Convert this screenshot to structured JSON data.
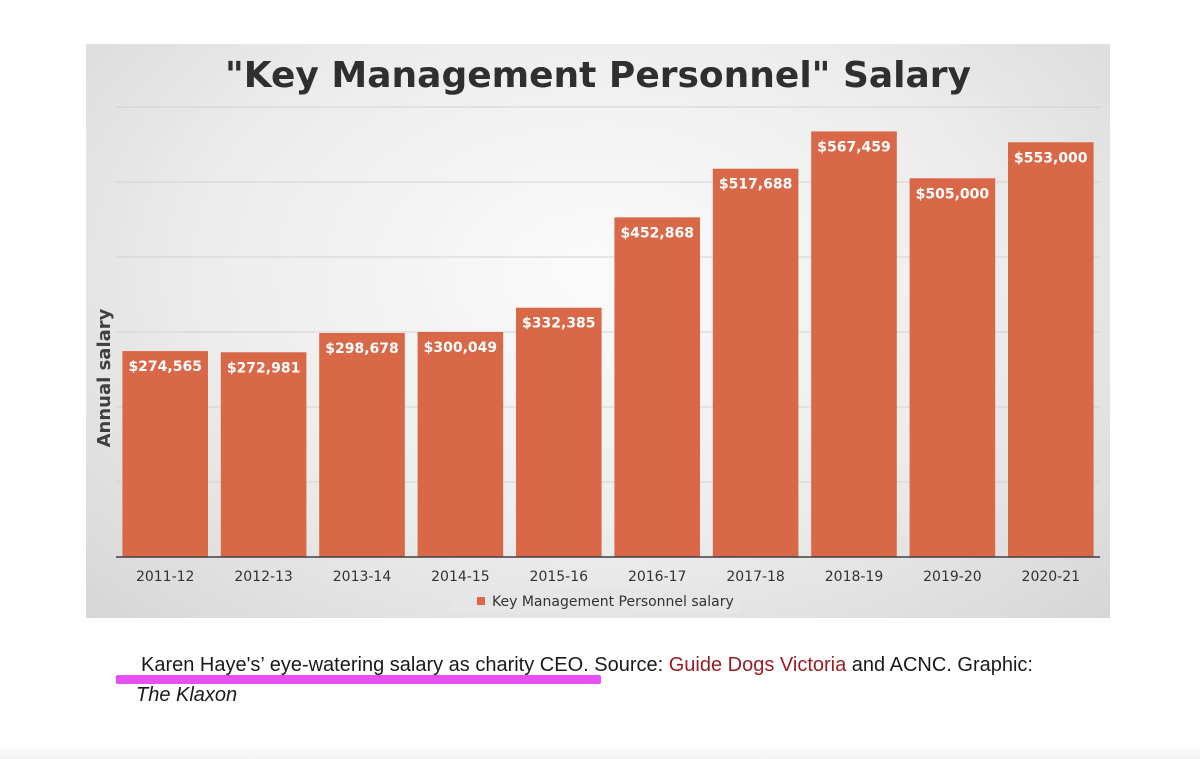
{
  "chart_data": {
    "type": "bar",
    "title": "\"Key Management Personnel\" Salary",
    "ylabel": "Annual salary",
    "xlabel": "",
    "categories": [
      "2011-12",
      "2012-13",
      "2013-14",
      "2014-15",
      "2015-16",
      "2016-17",
      "2017-18",
      "2018-19",
      "2019-20",
      "2020-21"
    ],
    "series": [
      {
        "name": "Key Management Personnel salary",
        "values": [
          274565,
          272981,
          298678,
          300049,
          332385,
          452868,
          517688,
          567459,
          505000,
          553000
        ],
        "labels": [
          "$274,565",
          "$272,981",
          "$298,678",
          "$300,049",
          "$332,385",
          "$452,868",
          "$517,688",
          "$567,459",
          "$505,000",
          "$553,000"
        ]
      }
    ],
    "ylim": [
      0,
      600000
    ],
    "ytick_step": 100000,
    "grid": true,
    "legend_position": "bottom",
    "bar_color": "#d96848"
  },
  "caption": {
    "text_main": "Karen Haye's’ eye-watering salary as charity CEO. Source: ",
    "link_text": "Guide Dogs Victoria",
    "text_after": " and ACNC. Graphic:",
    "credit": "The Klaxon",
    "highlight_color": "#e64ff0",
    "link_color": "#9b1c22"
  }
}
